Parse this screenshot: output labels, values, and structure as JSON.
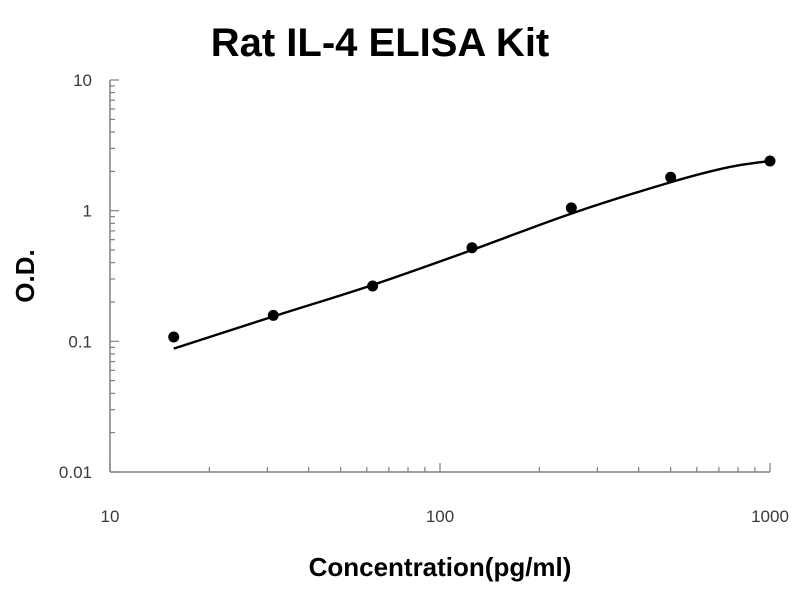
{
  "chart_data": {
    "type": "scatter",
    "title": "Rat IL-4 ELISA Kit",
    "xlabel": "Concentration(pg/ml)",
    "ylabel": "O.D.",
    "x_scale": "log",
    "y_scale": "log",
    "xlim": [
      10,
      1000
    ],
    "ylim": [
      0.01,
      10
    ],
    "x_ticks": [
      10,
      100,
      1000
    ],
    "x_tick_labels": [
      "10",
      "100",
      "1000"
    ],
    "y_ticks": [
      0.01,
      0.1,
      1,
      10
    ],
    "y_tick_labels": [
      "0.01",
      "0.1",
      "1",
      "10"
    ],
    "grid": false,
    "legend": "none",
    "series": [
      {
        "x": [
          15.6,
          31.25,
          62.5,
          125,
          250,
          500,
          1000
        ],
        "y": [
          0.108,
          0.158,
          0.265,
          0.52,
          1.05,
          1.8,
          2.4
        ]
      }
    ],
    "fit_curve": {
      "x": [
        15.6,
        31.25,
        62.5,
        125,
        250,
        500,
        750,
        1000
      ],
      "y": [
        0.088,
        0.155,
        0.27,
        0.5,
        0.95,
        1.65,
        2.15,
        2.4
      ]
    },
    "colors": {
      "points": "#000000",
      "curve": "#000000",
      "axes": "#808080"
    }
  }
}
